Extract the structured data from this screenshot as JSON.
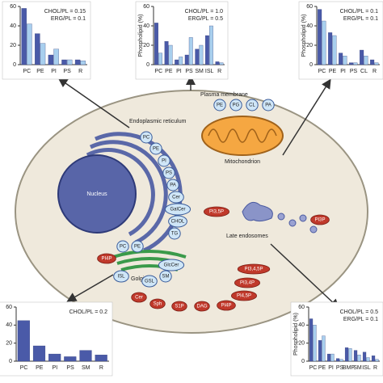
{
  "chart_data": [
    {
      "type": "bar",
      "categories": [
        "PC",
        "PE",
        "PI",
        "PS",
        "R"
      ],
      "ylim": [
        0,
        60
      ],
      "yticks": [
        0,
        20,
        40,
        60
      ],
      "annotations": [
        "CHOL/PL = 0.15",
        "ERG/PL = 0.1"
      ],
      "series": [
        {
          "color": "#4a5aa8",
          "values": [
            58,
            32,
            10,
            5,
            5
          ]
        },
        {
          "color": "#a8cfee",
          "values": [
            42,
            22,
            16,
            5,
            4
          ]
        }
      ]
    },
    {
      "type": "bar",
      "ylabel": "Phospholipid (%)",
      "categories": [
        "PC",
        "PE",
        "PI",
        "PS",
        "SM",
        "ISL",
        "R"
      ],
      "ylim": [
        0,
        60
      ],
      "yticks": [
        0,
        20,
        40,
        60
      ],
      "annotations": [
        "CHOL/PL = 1.0",
        "ERG/PL = 0.5"
      ],
      "series": [
        {
          "color": "#4a5aa8",
          "values": [
            43,
            24,
            5,
            10,
            16,
            30,
            3
          ]
        },
        {
          "color": "#a8cfee",
          "values": [
            12,
            20,
            8,
            28,
            20,
            40,
            2
          ]
        }
      ]
    },
    {
      "type": "bar",
      "ylabel": "Phospholipid (%)",
      "categories": [
        "PC",
        "PE",
        "PI",
        "PS",
        "CL",
        "R"
      ],
      "ylim": [
        0,
        60
      ],
      "yticks": [
        0,
        20,
        40,
        60
      ],
      "annotations": [
        "CHOL/PL = 0.1",
        "ERG/PL = 0.1"
      ],
      "series": [
        {
          "color": "#4a5aa8",
          "values": [
            57,
            33,
            12,
            2,
            15,
            5
          ]
        },
        {
          "color": "#a8cfee",
          "values": [
            45,
            30,
            9,
            2,
            9,
            2
          ]
        }
      ]
    },
    {
      "type": "bar",
      "categories": [
        "PC",
        "PE",
        "PI",
        "PS",
        "SM",
        "R"
      ],
      "ylim": [
        0,
        60
      ],
      "yticks": [
        0,
        20,
        40,
        60
      ],
      "annotations": [
        "CHOL/PL = 0.2"
      ],
      "series": [
        {
          "color": "#4a5aa8",
          "values": [
            45,
            17,
            8,
            5,
            12,
            7
          ]
        }
      ]
    },
    {
      "type": "bar",
      "ylabel": "Phospholipid (%)",
      "categories": [
        "PC",
        "PE",
        "PI",
        "PS",
        "BMP",
        "SM",
        "ISL",
        "R"
      ],
      "ylim": [
        0,
        60
      ],
      "yticks": [
        0,
        20,
        40,
        60
      ],
      "annotations": [
        "CHOL/PL = 0.5",
        "ERG/PL = 0.1"
      ],
      "series": [
        {
          "color": "#4a5aa8",
          "values": [
            47,
            23,
            8,
            3,
            15,
            12,
            10,
            6
          ]
        },
        {
          "color": "#a8cfee",
          "values": [
            40,
            28,
            8,
            2,
            14,
            7,
            4,
            2
          ]
        }
      ]
    }
  ],
  "diagram": {
    "organelles": {
      "plasma_membrane": "Plasma membrane",
      "er": "Endoplasmic reticulum",
      "nucleus": "Nucleus",
      "mitochondrion": "Mitochondrion",
      "golgi": "Golgi",
      "late_endosomes": "Late endosomes"
    },
    "er_lipids": [
      "PC",
      "PE",
      "PI",
      "PS",
      "PA",
      "Cer",
      "GalCer",
      "CHOL",
      "TG"
    ],
    "mito_lipids": [
      "PE",
      "PG",
      "CL",
      "PA"
    ],
    "golgi_lipids": [
      "PC",
      "PE",
      "PI4P",
      "GlcCer",
      "ISL",
      "GSL",
      "SM"
    ],
    "signalling_lipids": [
      "PI3,5P",
      "PI3P",
      "Cer",
      "Sph",
      "S1P",
      "DAG",
      "PI4P",
      "PI4,5P",
      "PI3,4P",
      "PI3,4,5P"
    ]
  }
}
